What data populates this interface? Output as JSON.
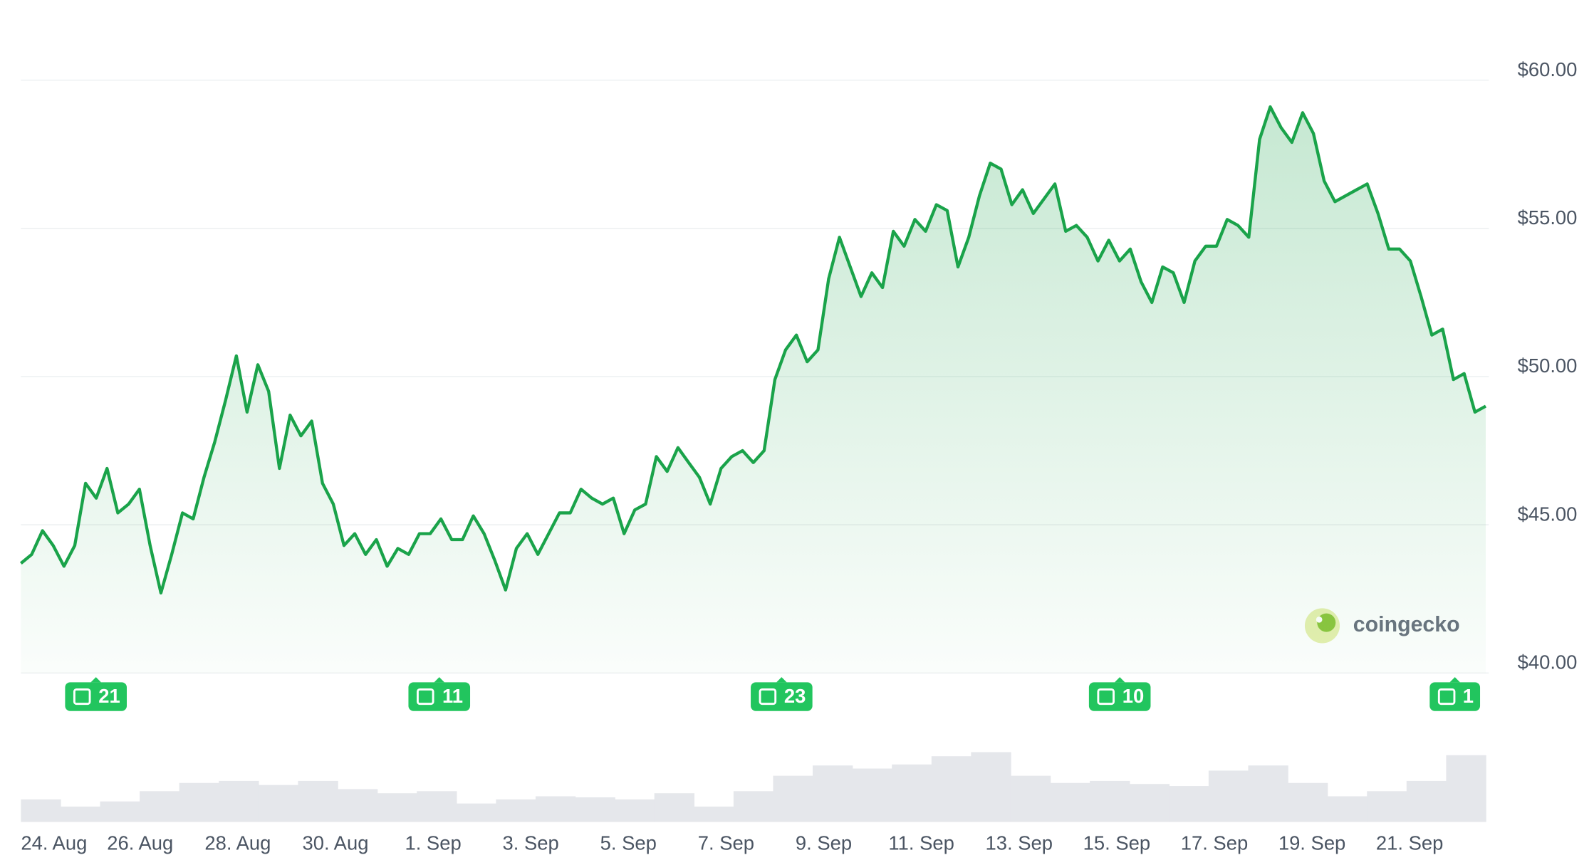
{
  "chart_data": {
    "type": "line",
    "series": [
      {
        "name": "Price",
        "color": "#1aa34a",
        "values": [
          43.7,
          44.0,
          44.8,
          44.3,
          43.6,
          44.3,
          46.4,
          45.9,
          46.9,
          45.4,
          45.7,
          46.2,
          44.3,
          42.7,
          44.0,
          45.4,
          45.2,
          46.6,
          47.8,
          49.2,
          50.7,
          48.8,
          50.4,
          49.5,
          46.9,
          48.7,
          48.0,
          48.5,
          46.4,
          45.7,
          44.3,
          44.7,
          44.0,
          44.5,
          43.6,
          44.2,
          44.0,
          44.7,
          44.7,
          45.2,
          44.5,
          44.5,
          45.3,
          44.7,
          43.8,
          42.8,
          44.2,
          44.7,
          44.0,
          44.7,
          45.4,
          45.4,
          46.2,
          45.9,
          45.7,
          45.9,
          44.7,
          45.5,
          45.7,
          47.3,
          46.8,
          47.6,
          47.1,
          46.6,
          45.7,
          46.9,
          47.3,
          47.5,
          47.1,
          47.5,
          49.9,
          50.9,
          51.4,
          50.5,
          50.9,
          53.3,
          54.7,
          53.7,
          52.7,
          53.5,
          53.0,
          54.9,
          54.4,
          55.3,
          54.9,
          55.8,
          55.6,
          53.7,
          54.7,
          56.1,
          57.2,
          57.0,
          55.8,
          56.3,
          55.5,
          56.0,
          56.5,
          54.9,
          55.1,
          54.7,
          53.9,
          54.6,
          53.9,
          54.3,
          53.2,
          52.5,
          53.7,
          53.5,
          52.5,
          53.9,
          54.4,
          54.4,
          55.3,
          55.1,
          54.7,
          58.0,
          59.1,
          58.4,
          57.9,
          58.9,
          58.2,
          56.6,
          55.9,
          56.1,
          56.3,
          56.5,
          55.5,
          54.3,
          54.3,
          53.9,
          52.7,
          51.4,
          51.6,
          49.9,
          50.1,
          48.8,
          49.0
        ]
      }
    ],
    "volume": [
      22,
      15,
      20,
      30,
      38,
      40,
      36,
      40,
      32,
      28,
      30,
      18,
      22,
      25,
      24,
      22,
      28,
      15,
      30,
      45,
      55,
      52,
      56,
      64,
      68,
      45,
      38,
      40,
      37,
      35,
      50,
      55,
      38,
      25,
      30,
      40,
      65
    ],
    "ylim": [
      40,
      60
    ],
    "yticks": [
      {
        "value": 40,
        "label": "$40.00"
      },
      {
        "value": 45,
        "label": "$45.00"
      },
      {
        "value": 50,
        "label": "$50.00"
      },
      {
        "value": 55,
        "label": "$55.00"
      },
      {
        "value": 60,
        "label": "$60.00"
      }
    ],
    "xtick_labels": [
      "24. Aug",
      "26. Aug",
      "28. Aug",
      "30. Aug",
      "1. Sep",
      "3. Sep",
      "5. Sep",
      "7. Sep",
      "9. Sep",
      "11. Sep",
      "13. Sep",
      "15. Sep",
      "17. Sep",
      "19. Sep",
      "21. Sep"
    ],
    "news": [
      "21",
      "11",
      "23",
      "10",
      "1"
    ],
    "watermark": "coingecko",
    "grid": true
  }
}
